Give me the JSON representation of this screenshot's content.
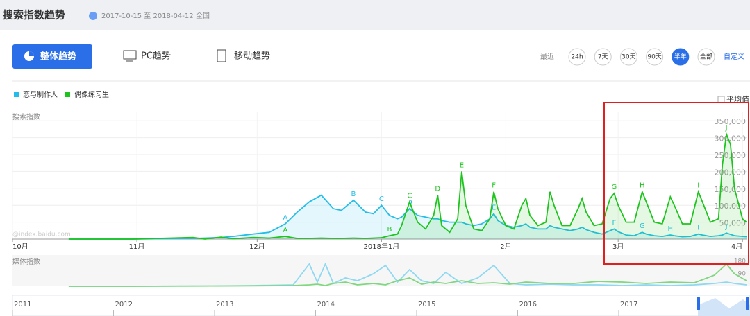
{
  "header": {
    "title": "搜索指数趋势",
    "date_range": "2017-10-15 至 2018-04-12",
    "region": "全国"
  },
  "tabs": [
    "整体趋势",
    "PC趋势",
    "移动趋势"
  ],
  "range": {
    "prefix": "最近",
    "options": [
      "24h",
      "7天",
      "30天",
      "90天",
      "半年",
      "全部"
    ],
    "active": 4,
    "custom": "自定义"
  },
  "average_option": "平均值",
  "watermark": "@index.baidu.com",
  "chart_data": [
    {
      "type": "area",
      "title": "搜索指数",
      "x": [
        14,
        30,
        45,
        48,
        52,
        55,
        60,
        64,
        68,
        71,
        74,
        77,
        80,
        82,
        85,
        88,
        90,
        92,
        94,
        96,
        97,
        99,
        101,
        103,
        105,
        106,
        107,
        109,
        111,
        112,
        113,
        115,
        117,
        119,
        120,
        121,
        123,
        125,
        127,
        128,
        129,
        131,
        133,
        134,
        135,
        137,
        139,
        141,
        142,
        143,
        145,
        147,
        149,
        150,
        151,
        153,
        155,
        157,
        158,
        160,
        162,
        164,
        165,
        167,
        169,
        171,
        172,
        174,
        176,
        177,
        178,
        179,
        180,
        182,
        183
      ],
      "xlim": [
        0,
        183
      ],
      "xticks": [
        {
          "value": 0,
          "label": "10月"
        },
        {
          "value": 31,
          "label": "11月"
        },
        {
          "value": 61,
          "label": "12月"
        },
        {
          "value": 92,
          "label": "2018年1月"
        },
        {
          "value": 123,
          "label": "2月"
        },
        {
          "value": 151,
          "label": "3月"
        },
        {
          "value": 182,
          "label": "4月"
        }
      ],
      "ylim": [
        0,
        375000
      ],
      "yticks": [
        {
          "value": 50000,
          "label": "50,000"
        },
        {
          "value": 100000,
          "label": "100,000"
        },
        {
          "value": 150000,
          "label": "150,000"
        },
        {
          "value": 200000,
          "label": "200,000"
        },
        {
          "value": 250000,
          "label": "250,000"
        },
        {
          "value": 300000,
          "label": "300,000"
        },
        {
          "value": 350000,
          "label": "350,000"
        }
      ],
      "grid": true,
      "series": [
        {
          "name": "恋与制作人",
          "color": "#22bde8",
          "fill": "rgba(34,189,232,0.12)",
          "values": [
            0,
            0,
            2000,
            3000,
            5000,
            8000,
            15000,
            20000,
            45000,
            80000,
            110000,
            130000,
            90000,
            85000,
            115000,
            80000,
            75000,
            100000,
            70000,
            60000,
            65000,
            90000,
            70000,
            65000,
            60000,
            60000,
            55000,
            50000,
            50000,
            50000,
            45000,
            40000,
            45000,
            60000,
            75000,
            55000,
            40000,
            35000,
            40000,
            45000,
            35000,
            30000,
            30000,
            40000,
            35000,
            30000,
            25000,
            30000,
            35000,
            28000,
            20000,
            15000,
            25000,
            30000,
            22000,
            12000,
            10000,
            20000,
            15000,
            10000,
            8000,
            12000,
            10000,
            7000,
            8000,
            15000,
            12000,
            8000,
            10000,
            12000,
            18000,
            14000,
            10000,
            8000,
            7000
          ],
          "markers": [
            {
              "text": "A",
              "x": 68
            },
            {
              "text": "B",
              "x": 85
            },
            {
              "text": "C",
              "x": 92
            },
            {
              "text": "D",
              "x": 99
            },
            {
              "text": "E",
              "x": 120
            },
            {
              "text": "F",
              "x": 150
            },
            {
              "text": "G",
              "x": 157
            },
            {
              "text": "H",
              "x": 164
            },
            {
              "text": "I",
              "x": 171
            },
            {
              "text": "J",
              "x": 178
            }
          ]
        },
        {
          "name": "偶像练习生",
          "color": "#1ec41e",
          "fill": "rgba(30,196,30,0.12)",
          "values": [
            0,
            0,
            5000,
            0,
            6000,
            1000,
            5000,
            3000,
            8000,
            2000,
            2000,
            3000,
            2000,
            2000,
            3000,
            2000,
            3000,
            4000,
            10000,
            15000,
            40000,
            110000,
            50000,
            30000,
            70000,
            130000,
            40000,
            20000,
            60000,
            200000,
            100000,
            30000,
            25000,
            60000,
            140000,
            90000,
            40000,
            30000,
            100000,
            120000,
            70000,
            40000,
            50000,
            140000,
            100000,
            40000,
            40000,
            90000,
            120000,
            80000,
            40000,
            45000,
            120000,
            135000,
            100000,
            50000,
            50000,
            140000,
            110000,
            50000,
            45000,
            125000,
            100000,
            45000,
            45000,
            140000,
            110000,
            50000,
            60000,
            220000,
            310000,
            280000,
            150000,
            60000,
            50000
          ],
          "markers": [
            {
              "text": "A",
              "x": 68
            },
            {
              "text": "B",
              "x": 94
            },
            {
              "text": "C",
              "x": 99
            },
            {
              "text": "D",
              "x": 106
            },
            {
              "text": "E",
              "x": 112
            },
            {
              "text": "F",
              "x": 120
            },
            {
              "text": "G",
              "x": 150
            },
            {
              "text": "H",
              "x": 157
            },
            {
              "text": "I",
              "x": 171
            },
            {
              "text": "J",
              "x": 178
            }
          ]
        }
      ]
    },
    {
      "type": "line",
      "title": "媒体指数",
      "x": [
        14,
        30,
        50,
        60,
        70,
        74,
        76,
        78,
        80,
        83,
        86,
        90,
        93,
        96,
        99,
        102,
        105,
        108,
        112,
        116,
        120,
        124,
        128,
        134,
        140,
        146,
        152,
        158,
        164,
        170,
        175,
        178,
        180,
        183
      ],
      "xlim": [
        0,
        183
      ],
      "ylim": [
        0,
        180
      ],
      "yticks": [
        90,
        180
      ],
      "series": [
        {
          "name": "恋与制作人",
          "color": "#8fd8f2",
          "values": [
            0,
            0,
            2,
            5,
            10,
            160,
            30,
            160,
            20,
            60,
            40,
            90,
            150,
            30,
            120,
            40,
            20,
            100,
            20,
            60,
            150,
            20,
            10,
            15,
            10,
            10,
            5,
            10,
            5,
            10,
            20,
            30,
            20,
            10
          ]
        },
        {
          "name": "偶像练习生",
          "color": "#7fd77f",
          "values": [
            0,
            0,
            2,
            3,
            5,
            10,
            15,
            5,
            20,
            30,
            10,
            20,
            10,
            40,
            60,
            15,
            30,
            20,
            40,
            20,
            25,
            15,
            30,
            20,
            20,
            35,
            30,
            20,
            30,
            25,
            80,
            160,
            90,
            40
          ]
        }
      ]
    }
  ],
  "navigator": {
    "years": [
      "2011",
      "2012",
      "2013",
      "2014",
      "2015",
      "2016",
      "2017"
    ]
  }
}
